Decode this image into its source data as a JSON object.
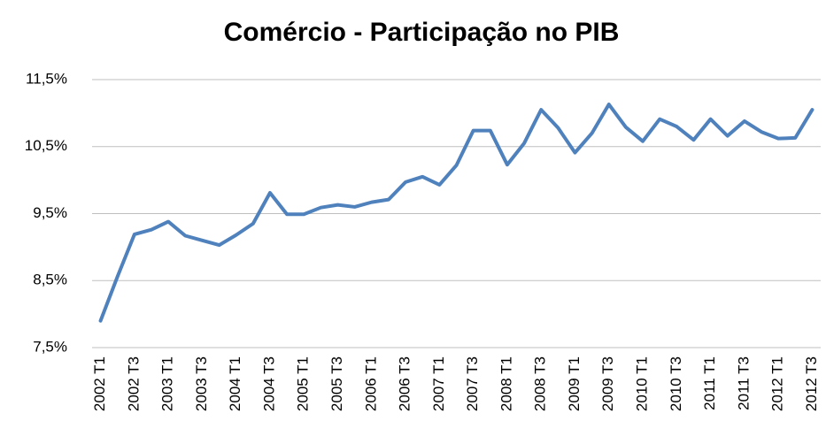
{
  "chart_data": {
    "type": "line",
    "title": "Comércio - Participação no PIB",
    "categories": [
      "2002 T1",
      null,
      "2002 T3",
      null,
      "2003 T1",
      null,
      "2003 T3",
      null,
      "2004 T1",
      null,
      "2004 T3",
      null,
      "2005 T1",
      null,
      "2005 T3",
      null,
      "2006 T1",
      null,
      "2006 T3",
      null,
      "2007 T1",
      null,
      "2007 T3",
      null,
      "2008 T1",
      null,
      "2008 T3",
      null,
      "2009 T1",
      null,
      "2009 T3",
      null,
      "2010 T1",
      null,
      "2010 T3",
      null,
      "2011 T1",
      null,
      "2011 T3",
      null,
      "2012 T1",
      null,
      "2012 T3"
    ],
    "values": [
      7.9,
      8.56,
      9.19,
      9.26,
      9.38,
      9.17,
      9.1,
      9.03,
      9.18,
      9.35,
      9.81,
      9.49,
      9.49,
      9.59,
      9.63,
      9.6,
      9.67,
      9.71,
      9.97,
      10.05,
      9.93,
      10.22,
      10.74,
      10.74,
      10.23,
      10.55,
      11.05,
      10.78,
      10.41,
      10.7,
      11.13,
      10.79,
      10.58,
      10.91,
      10.8,
      10.6,
      10.91,
      10.66,
      10.88,
      10.72,
      10.62,
      10.63,
      11.05
    ],
    "color": "#4f81bd",
    "ylim": [
      7.5,
      11.5
    ],
    "yticks": [
      {
        "value": 7.5,
        "label": "7,5%"
      },
      {
        "value": 8.5,
        "label": "8,5%"
      },
      {
        "value": 9.5,
        "label": "9,5%"
      },
      {
        "value": 10.5,
        "label": "10,5%"
      },
      {
        "value": 11.5,
        "label": "11,5%"
      }
    ],
    "grid": true
  }
}
